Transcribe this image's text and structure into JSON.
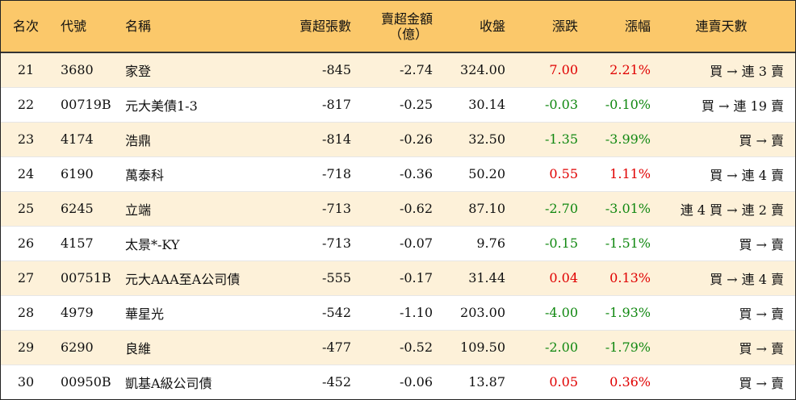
{
  "colors": {
    "header_bg": "#fbc86a",
    "odd_row_bg": "#fdf1d9",
    "up": "#e00000",
    "down": "#118811"
  },
  "headers": {
    "rank": "名次",
    "code": "代號",
    "name": "名稱",
    "net_sell_lots": "賣超張數",
    "net_sell_amount_line1": "賣超金額",
    "net_sell_amount_line2": "（億）",
    "close": "收盤",
    "change": "漲跌",
    "change_pct": "漲幅",
    "streak": "連賣天數"
  },
  "rows": [
    {
      "rank": "21",
      "code": "3680",
      "name": "家登",
      "lots": "-845",
      "amount": "-2.74",
      "close": "324.00",
      "change": "7.00",
      "pct": "2.21%",
      "dir": "up",
      "streak": "買 → 連 3 賣"
    },
    {
      "rank": "22",
      "code": "00719B",
      "name": "元大美債1-3",
      "lots": "-817",
      "amount": "-0.25",
      "close": "30.14",
      "change": "-0.03",
      "pct": "-0.10%",
      "dir": "down",
      "streak": "買 → 連 19 賣"
    },
    {
      "rank": "23",
      "code": "4174",
      "name": "浩鼎",
      "lots": "-814",
      "amount": "-0.26",
      "close": "32.50",
      "change": "-1.35",
      "pct": "-3.99%",
      "dir": "down",
      "streak": "買 → 賣"
    },
    {
      "rank": "24",
      "code": "6190",
      "name": "萬泰科",
      "lots": "-718",
      "amount": "-0.36",
      "close": "50.20",
      "change": "0.55",
      "pct": "1.11%",
      "dir": "up",
      "streak": "買 → 連 4 賣"
    },
    {
      "rank": "25",
      "code": "6245",
      "name": "立端",
      "lots": "-713",
      "amount": "-0.62",
      "close": "87.10",
      "change": "-2.70",
      "pct": "-3.01%",
      "dir": "down",
      "streak": "連 4 買 → 連 2 賣"
    },
    {
      "rank": "26",
      "code": "4157",
      "name": "太景*-KY",
      "lots": "-713",
      "amount": "-0.07",
      "close": "9.76",
      "change": "-0.15",
      "pct": "-1.51%",
      "dir": "down",
      "streak": "買 → 賣"
    },
    {
      "rank": "27",
      "code": "00751B",
      "name": "元大AAA至A公司債",
      "lots": "-555",
      "amount": "-0.17",
      "close": "31.44",
      "change": "0.04",
      "pct": "0.13%",
      "dir": "up",
      "streak": "買 → 連 4 賣"
    },
    {
      "rank": "28",
      "code": "4979",
      "name": "華星光",
      "lots": "-542",
      "amount": "-1.10",
      "close": "203.00",
      "change": "-4.00",
      "pct": "-1.93%",
      "dir": "down",
      "streak": "買 → 賣"
    },
    {
      "rank": "29",
      "code": "6290",
      "name": "良維",
      "lots": "-477",
      "amount": "-0.52",
      "close": "109.50",
      "change": "-2.00",
      "pct": "-1.79%",
      "dir": "down",
      "streak": "買 → 賣"
    },
    {
      "rank": "30",
      "code": "00950B",
      "name": "凱基A級公司債",
      "lots": "-452",
      "amount": "-0.06",
      "close": "13.87",
      "change": "0.05",
      "pct": "0.36%",
      "dir": "up",
      "streak": "買 → 賣"
    }
  ]
}
